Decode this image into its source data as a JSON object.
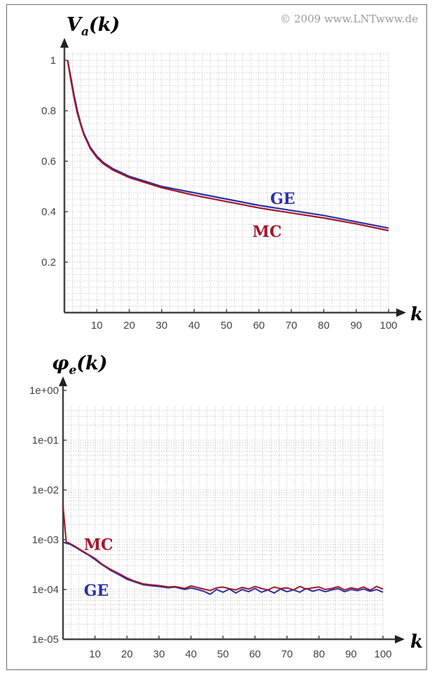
{
  "copyright": "© 2009 www.LNTwww.de",
  "colors": {
    "GE": "#2b2fa8",
    "MC": "#a0182a",
    "axis": "#444444",
    "grid": "#b8b8b8"
  },
  "chart_data": [
    {
      "type": "line",
      "ylabel": "V_a(k)",
      "ylabel_display": "Va(k)",
      "xlabel": "k",
      "xlim": [
        0,
        100
      ],
      "ylim": [
        0,
        1
      ],
      "xticks": [
        "10",
        "20",
        "30",
        "40",
        "50",
        "60",
        "70",
        "80",
        "90",
        "100"
      ],
      "yticks": [
        "1",
        "0.8",
        "0.6",
        "0.4",
        "0.2"
      ],
      "grid": true,
      "series": [
        {
          "name": "GE",
          "x": [
            1,
            2,
            3,
            4,
            5,
            6,
            8,
            10,
            12,
            15,
            20,
            25,
            30,
            40,
            50,
            60,
            70,
            80,
            90,
            100
          ],
          "values": [
            1.0,
            0.93,
            0.86,
            0.8,
            0.75,
            0.71,
            0.655,
            0.62,
            0.595,
            0.57,
            0.54,
            0.52,
            0.5,
            0.475,
            0.45,
            0.425,
            0.405,
            0.385,
            0.36,
            0.335
          ]
        },
        {
          "name": "MC",
          "x": [
            1,
            2,
            3,
            4,
            5,
            6,
            8,
            10,
            12,
            15,
            20,
            25,
            30,
            40,
            50,
            60,
            70,
            80,
            90,
            100
          ],
          "values": [
            1.0,
            0.92,
            0.85,
            0.79,
            0.745,
            0.705,
            0.65,
            0.615,
            0.59,
            0.565,
            0.535,
            0.515,
            0.495,
            0.465,
            0.44,
            0.415,
            0.395,
            0.375,
            0.352,
            0.325
          ]
        }
      ]
    },
    {
      "type": "line",
      "ylabel": "φ_e(k)",
      "ylabel_display": "φe(k)",
      "xlabel": "k",
      "xlim": [
        0,
        100
      ],
      "ylim": [
        "1e-05",
        "1e+00"
      ],
      "yscale": "log",
      "xticks": [
        "10",
        "20",
        "30",
        "40",
        "50",
        "60",
        "70",
        "80",
        "90",
        "100"
      ],
      "yticks": [
        "1e+00",
        "1e-01",
        "1e-02",
        "1e-03",
        "1e-04",
        "1e-05"
      ],
      "grid": true,
      "series": [
        {
          "name": "MC",
          "x": [
            0,
            1,
            2,
            4,
            6,
            8,
            10,
            12,
            15,
            18,
            20,
            22,
            25,
            27,
            30,
            33,
            35,
            38,
            40,
            42,
            44,
            46,
            48,
            50,
            52,
            54,
            56,
            58,
            60,
            62,
            64,
            66,
            68,
            70,
            72,
            74,
            76,
            78,
            80,
            82,
            84,
            86,
            88,
            90,
            92,
            94,
            96,
            98,
            100
          ],
          "values": [
            0.005,
            0.0009,
            0.00085,
            0.00072,
            0.0006,
            0.0005,
            0.00042,
            0.00033,
            0.00025,
            0.0002,
            0.00017,
            0.00015,
            0.00013,
            0.000125,
            0.00012,
            0.000112,
            0.000115,
            0.000105,
            0.000118,
            0.00011,
            0.000102,
            9.5e-05,
            0.000108,
            0.000112,
            0.000104,
            9.8e-05,
            0.00011,
            0.000102,
            0.000115,
            0.000105,
            9.8e-05,
            0.000112,
            0.000104,
            0.000108,
            9.8e-05,
            0.000115,
            0.000102,
            0.000108,
            0.000112,
            0.0001,
            0.000105,
            0.000114,
            9.8e-05,
            0.000108,
            0.000102,
            0.000112,
            9.7e-05,
            0.000115,
            0.000102
          ]
        },
        {
          "name": "GE",
          "x": [
            0,
            1,
            2,
            4,
            6,
            8,
            10,
            12,
            15,
            18,
            20,
            22,
            25,
            27,
            30,
            33,
            35,
            38,
            40,
            42,
            44,
            46,
            48,
            50,
            52,
            54,
            56,
            58,
            60,
            62,
            64,
            66,
            68,
            70,
            72,
            74,
            76,
            78,
            80,
            82,
            84,
            86,
            88,
            90,
            92,
            94,
            96,
            98,
            100
          ],
          "values": [
            0.0009,
            0.00085,
            0.00082,
            0.0007,
            0.00058,
            0.00049,
            0.0004,
            0.00032,
            0.00024,
            0.00019,
            0.00016,
            0.000145,
            0.000125,
            0.00012,
            0.000115,
            0.000108,
            0.000112,
            0.0001,
            0.000108,
            0.0001,
            9.2e-05,
            8e-05,
            0.0001,
            8.8e-05,
            0.000102,
            8.5e-05,
            0.0001,
            9e-05,
            0.000105,
            8.8e-05,
            9.8e-05,
            8.5e-05,
            0.000102,
            9e-05,
            9.8e-05,
            8.8e-05,
            0.000105,
            9.2e-05,
            0.0001,
            9e-05,
            9.8e-05,
            0.000104,
            9e-05,
            0.0001,
            9.5e-05,
            0.000102,
            9.2e-05,
            0.0001,
            8.8e-05
          ]
        }
      ]
    }
  ],
  "labels": {
    "top_y": "V",
    "top_y_sub": "a",
    "top_y_suffix": "(k)",
    "bottom_y": "φ",
    "bottom_y_sub": "e",
    "bottom_y_suffix": "(k)",
    "k": "k",
    "top_GE": "GE",
    "top_MC": "MC",
    "bottom_MC": "MC",
    "bottom_GE": "GE"
  }
}
